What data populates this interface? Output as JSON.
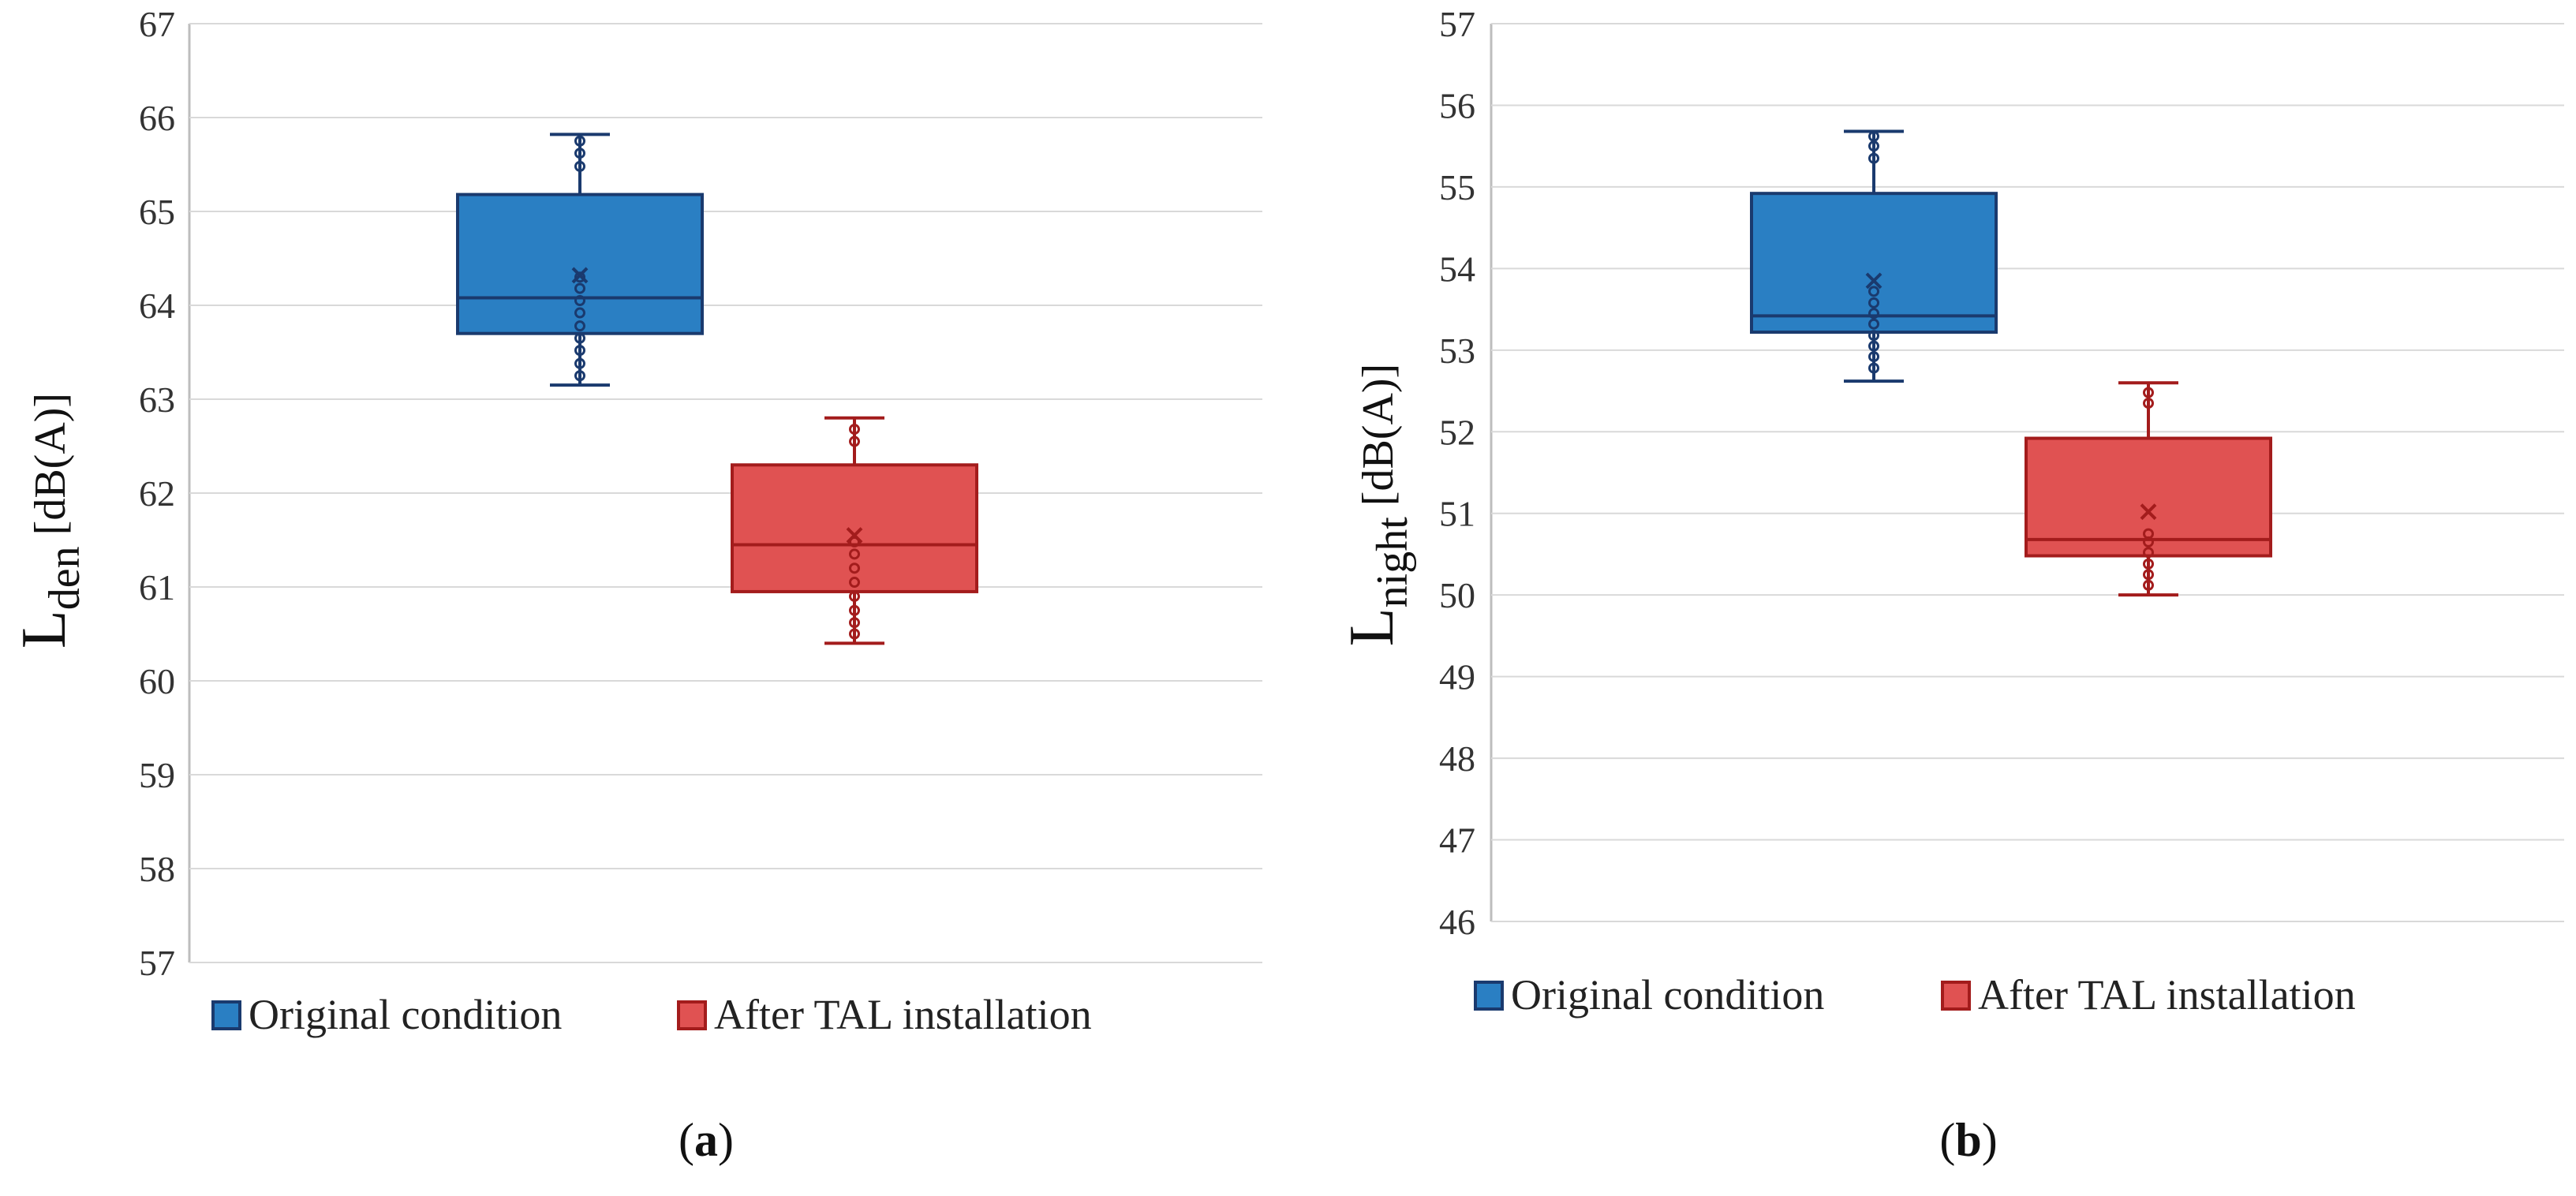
{
  "chart_data": [
    {
      "type": "box",
      "panel_label": "a",
      "ylabel": {
        "main": "L",
        "subscript": "den",
        "unit": " [dB(A)]"
      },
      "ylim": [
        57,
        67
      ],
      "yticks": [
        57,
        58,
        59,
        60,
        61,
        62,
        63,
        64,
        65,
        66,
        67
      ],
      "grid": true,
      "legend": "bottom",
      "series": [
        {
          "name": "Original condition",
          "color": "#2a7fc3",
          "edge": "#1a3a6e",
          "min": 63.15,
          "q1": 63.7,
          "median": 64.08,
          "q3": 65.18,
          "max": 65.82,
          "mean": 64.32,
          "points": [
            63.25,
            63.38,
            63.52,
            63.65,
            63.78,
            63.92,
            64.05,
            64.18,
            64.3,
            65.48,
            65.62,
            65.75
          ]
        },
        {
          "name": "After TAL installation",
          "color": "#e05252",
          "edge": "#a31c1c",
          "min": 60.4,
          "q1": 60.95,
          "median": 61.45,
          "q3": 62.3,
          "max": 62.8,
          "mean": 61.55,
          "points": [
            60.5,
            60.62,
            60.75,
            60.9,
            61.05,
            61.2,
            61.35,
            61.48,
            62.55,
            62.68
          ]
        }
      ]
    },
    {
      "type": "box",
      "panel_label": "b",
      "ylabel": {
        "main": "L",
        "subscript": "night",
        "unit": " [dB(A)]"
      },
      "ylim": [
        46,
        57
      ],
      "yticks": [
        46,
        47,
        48,
        49,
        50,
        51,
        52,
        53,
        54,
        55,
        56,
        57
      ],
      "grid": true,
      "legend": "bottom",
      "series": [
        {
          "name": "Original condition",
          "color": "#2a7fc3",
          "edge": "#1a3a6e",
          "min": 52.62,
          "q1": 53.22,
          "median": 53.42,
          "q3": 54.92,
          "max": 55.68,
          "mean": 53.85,
          "points": [
            52.78,
            52.92,
            53.05,
            53.18,
            53.32,
            53.45,
            53.58,
            53.72,
            55.35,
            55.5,
            55.62
          ]
        },
        {
          "name": "After TAL installation",
          "color": "#e05252",
          "edge": "#a31c1c",
          "min": 50.0,
          "q1": 50.48,
          "median": 50.68,
          "q3": 51.92,
          "max": 52.6,
          "mean": 51.02,
          "points": [
            50.12,
            50.25,
            50.38,
            50.52,
            50.65,
            50.75,
            52.35,
            52.48
          ]
        }
      ]
    }
  ]
}
